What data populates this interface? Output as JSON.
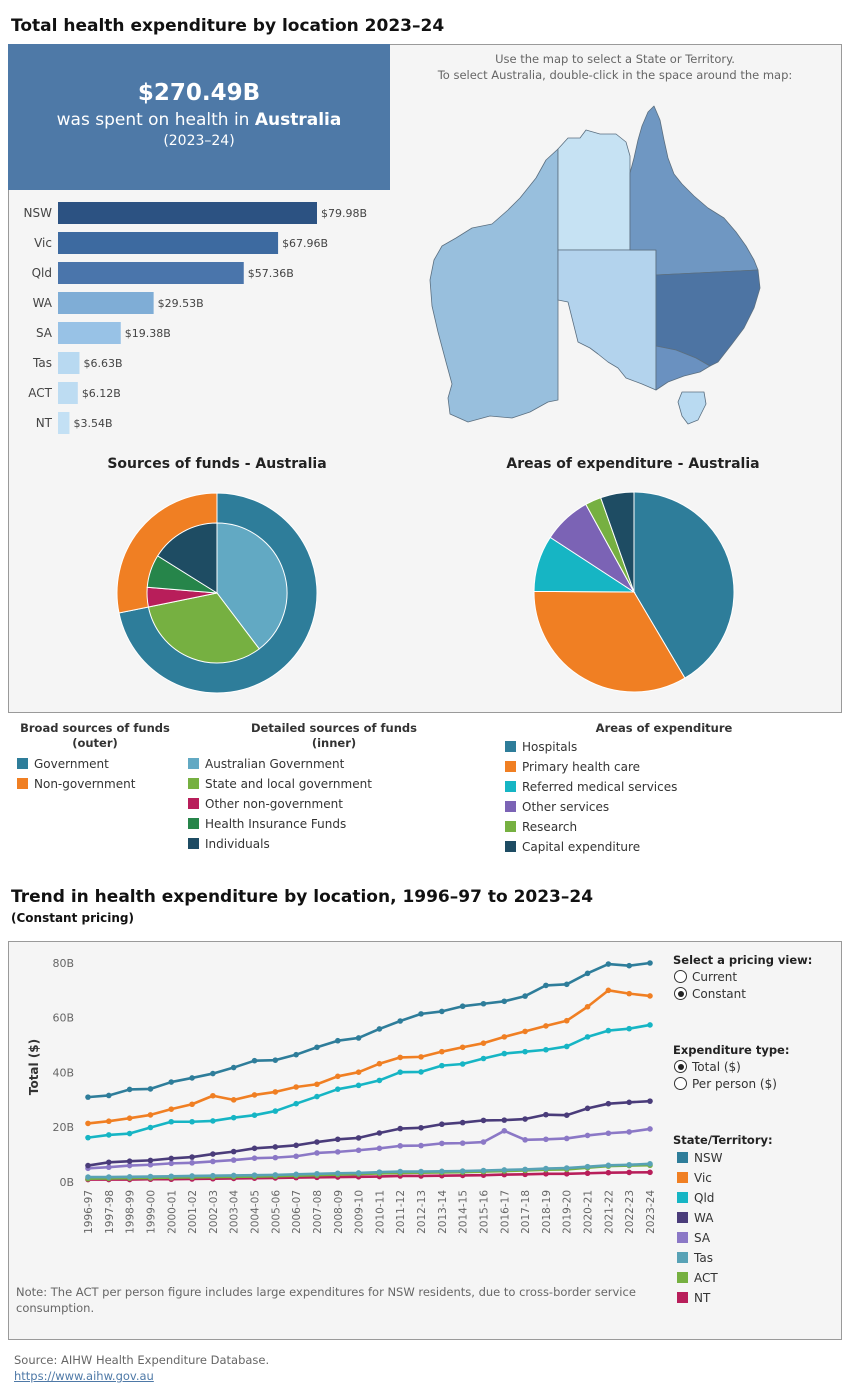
{
  "section1": {
    "title": "Total health expenditure by location 2023–24",
    "summary": {
      "amount": "$270.49B",
      "line_prefix": "was spent on health in ",
      "location": "Australia",
      "period": "(2023–24)"
    },
    "map_instructions": {
      "line1": "Use the map to select a State or Territory.",
      "line2": "To select Australia, double-click in the space around the map:"
    }
  },
  "colors": {
    "hero": "#4e79a7",
    "panel": "#f5f5f5"
  },
  "chart_data": [
    {
      "id": "state-bars",
      "type": "bar",
      "orientation": "horizontal",
      "categories": [
        "NSW",
        "Vic",
        "Qld",
        "WA",
        "SA",
        "Tas",
        "ACT",
        "NT"
      ],
      "values": [
        79.98,
        67.96,
        57.36,
        29.53,
        19.38,
        6.63,
        6.12,
        3.54
      ],
      "labels": [
        "$79.98B",
        "$67.96B",
        "$57.36B",
        "$29.53B",
        "$19.38B",
        "$6.63B",
        "$6.12B",
        "$3.54B"
      ],
      "colors": [
        "#2c5282",
        "#3d6aa0",
        "#4a75ab",
        "#7fadd6",
        "#98c2e6",
        "#b8d9f1",
        "#bddcf2",
        "#c3e0f4"
      ]
    },
    {
      "id": "map",
      "type": "choropleth",
      "regions": [
        "WA",
        "NT",
        "SA",
        "Qld",
        "NSW",
        "Vic",
        "Tas"
      ],
      "colors": {
        "WA": "#98bfdd",
        "NT": "#c6e2f3",
        "SA": "#b3d3ed",
        "Qld": "#6f97c2",
        "NSW": "#4d74a3",
        "Vic": "#6a91c0",
        "Tas": "#b9daf1"
      }
    },
    {
      "id": "sources-of-funds",
      "type": "pie",
      "title": "Sources of funds - Australia",
      "outer": [
        {
          "name": "Government",
          "value": 71.8,
          "color": "#2e7d9a"
        },
        {
          "name": "Non-government",
          "value": 28.2,
          "color": "#f07f23"
        }
      ],
      "inner": [
        {
          "name": "Australian Government",
          "value": 39.7,
          "color": "#62a9c3"
        },
        {
          "name": "State and local government",
          "value": 32.1,
          "color": "#76b041"
        },
        {
          "name": "Other non-government",
          "value": 4.5,
          "color": "#b81e5a"
        },
        {
          "name": "Health Insurance Funds",
          "value": 7.6,
          "color": "#26854a"
        },
        {
          "name": "Individuals",
          "value": 16.1,
          "color": "#1e4c63"
        }
      ]
    },
    {
      "id": "areas-of-expenditure",
      "type": "pie",
      "title": "Areas of expenditure - Australia",
      "slices": [
        {
          "name": "Hospitals",
          "value": 41.5,
          "color": "#2e7d9a"
        },
        {
          "name": "Primary health care",
          "value": 33.6,
          "color": "#f07f23"
        },
        {
          "name": "Referred medical services",
          "value": 9.1,
          "color": "#16b5c4"
        },
        {
          "name": "Other services",
          "value": 7.8,
          "color": "#7b63b5"
        },
        {
          "name": "Research",
          "value": 2.6,
          "color": "#76b041"
        },
        {
          "name": "Capital expenditure",
          "value": 5.4,
          "color": "#1e4c63"
        }
      ]
    },
    {
      "id": "trend",
      "type": "line",
      "title": "Trend in health expenditure by location, 1996–97 to 2023–24",
      "subtitle": "(Constant pricing)",
      "ylabel": "Total ($)",
      "ylim": [
        0,
        84
      ],
      "yticks": [
        0,
        20,
        40,
        60,
        80
      ],
      "ytick_labels": [
        "0B",
        "20B",
        "40B",
        "60B",
        "80B"
      ],
      "x": [
        "1996-97",
        "1997-98",
        "1998-99",
        "1999-00",
        "2000-01",
        "2001-02",
        "2002-03",
        "2003-04",
        "2004-05",
        "2005-06",
        "2006-07",
        "2007-08",
        "2008-09",
        "2009-10",
        "2010-11",
        "2011-12",
        "2012-13",
        "2013-14",
        "2014-15",
        "2015-16",
        "2016-17",
        "2017-18",
        "2018-19",
        "2019-20",
        "2020-21",
        "2021-22",
        "2022-23",
        "2023-24"
      ],
      "series": [
        {
          "name": "NSW",
          "color": "#2e7d9a",
          "values": [
            31.0,
            31.6,
            33.8,
            34.0,
            36.5,
            38.0,
            39.6,
            41.8,
            44.3,
            44.5,
            46.5,
            49.2,
            51.6,
            52.6,
            55.9,
            58.8,
            61.4,
            62.3,
            64.2,
            65.1,
            66.0,
            67.9,
            71.8,
            72.2,
            76.2,
            79.6,
            79.0,
            79.98
          ]
        },
        {
          "name": "Vic",
          "color": "#f07f23",
          "values": [
            21.4,
            22.2,
            23.3,
            24.5,
            26.6,
            28.4,
            31.5,
            30.0,
            31.8,
            32.9,
            34.7,
            35.7,
            38.6,
            40.1,
            43.2,
            45.5,
            45.7,
            47.6,
            49.2,
            50.7,
            53.0,
            55.0,
            57.0,
            58.9,
            64.0,
            70.0,
            68.8,
            67.96
          ]
        },
        {
          "name": "Qld",
          "color": "#16b5c4",
          "values": [
            16.2,
            17.2,
            17.7,
            19.9,
            22.0,
            22.0,
            22.3,
            23.5,
            24.4,
            25.9,
            28.6,
            31.2,
            33.9,
            35.3,
            37.1,
            40.1,
            40.2,
            42.5,
            43.1,
            45.1,
            46.9,
            47.6,
            48.3,
            49.5,
            53.0,
            55.3,
            56.0,
            57.36
          ]
        },
        {
          "name": "WA",
          "color": "#4a3c7a",
          "values": [
            6.0,
            7.2,
            7.6,
            7.9,
            8.6,
            9.1,
            10.2,
            11.1,
            12.3,
            12.8,
            13.4,
            14.6,
            15.6,
            16.1,
            17.9,
            19.5,
            19.8,
            21.1,
            21.7,
            22.5,
            22.6,
            23.0,
            24.6,
            24.4,
            26.9,
            28.6,
            29.1,
            29.53
          ]
        },
        {
          "name": "SA",
          "color": "#8b78c6",
          "values": [
            5.0,
            5.4,
            6.0,
            6.3,
            6.8,
            7.0,
            7.5,
            8.0,
            8.7,
            8.9,
            9.4,
            10.6,
            11.0,
            11.6,
            12.3,
            13.2,
            13.3,
            14.1,
            14.2,
            14.6,
            18.7,
            15.4,
            15.6,
            15.9,
            17.0,
            17.8,
            18.3,
            19.38
          ]
        },
        {
          "name": "Tas",
          "color": "#58a2b6",
          "values": [
            1.8,
            1.8,
            1.9,
            2.0,
            2.1,
            2.2,
            2.3,
            2.4,
            2.5,
            2.6,
            2.8,
            3.0,
            3.2,
            3.3,
            3.6,
            3.8,
            3.8,
            3.9,
            4.0,
            4.2,
            4.4,
            4.6,
            4.9,
            5.1,
            5.6,
            6.1,
            6.3,
            6.63
          ]
        },
        {
          "name": "ACT",
          "color": "#76b041",
          "values": [
            1.2,
            1.3,
            1.4,
            1.5,
            1.6,
            1.7,
            1.8,
            1.9,
            2.0,
            2.1,
            2.3,
            2.5,
            2.7,
            2.9,
            3.1,
            3.3,
            3.4,
            3.5,
            3.6,
            3.8,
            4.0,
            4.2,
            4.5,
            4.6,
            5.2,
            5.8,
            6.0,
            6.12
          ]
        },
        {
          "name": "NT",
          "color": "#b81e5a",
          "values": [
            0.9,
            0.9,
            0.9,
            1.0,
            1.0,
            1.1,
            1.2,
            1.3,
            1.4,
            1.5,
            1.6,
            1.7,
            1.8,
            1.9,
            2.0,
            2.2,
            2.2,
            2.3,
            2.4,
            2.5,
            2.7,
            2.8,
            3.0,
            3.0,
            3.2,
            3.4,
            3.5,
            3.54
          ]
        }
      ]
    }
  ],
  "legends": {
    "broad": {
      "title": "Broad sources of funds\n(outer)",
      "items": [
        "Government",
        "Non-government"
      ]
    },
    "detailed": {
      "title": "Detailed sources of funds\n(inner)",
      "items": [
        "Australian Government",
        "State and local government",
        "Other non-government",
        "Health Insurance Funds",
        "Individuals"
      ]
    },
    "areas": {
      "title": "Areas of expenditure",
      "items": [
        "Hospitals",
        "Primary health care",
        "Referred medical services",
        "Other services",
        "Research",
        "Capital expenditure"
      ]
    }
  },
  "section2": {
    "title": "Trend in health expenditure by location, 1996–97 to 2023–24",
    "subtitle": "(Constant pricing)",
    "note": "Note: The ACT per person figure includes large expenditures for NSW residents, due to cross-border service consumption."
  },
  "controls": {
    "pricing": {
      "title": "Select a pricing view:",
      "options": [
        "Current",
        "Constant"
      ],
      "selected": "Constant"
    },
    "exptype": {
      "title": "Expenditure type:",
      "options": [
        "Total ($)",
        "Per person ($)"
      ],
      "selected": "Total ($)"
    },
    "states": {
      "title": "State/Territory:",
      "items": [
        "NSW",
        "Vic",
        "Qld",
        "WA",
        "SA",
        "Tas",
        "ACT",
        "NT"
      ]
    }
  },
  "footer": {
    "source": "Source: AIHW Health Expenditure Database.",
    "link": "https://www.aihw.gov.au"
  }
}
